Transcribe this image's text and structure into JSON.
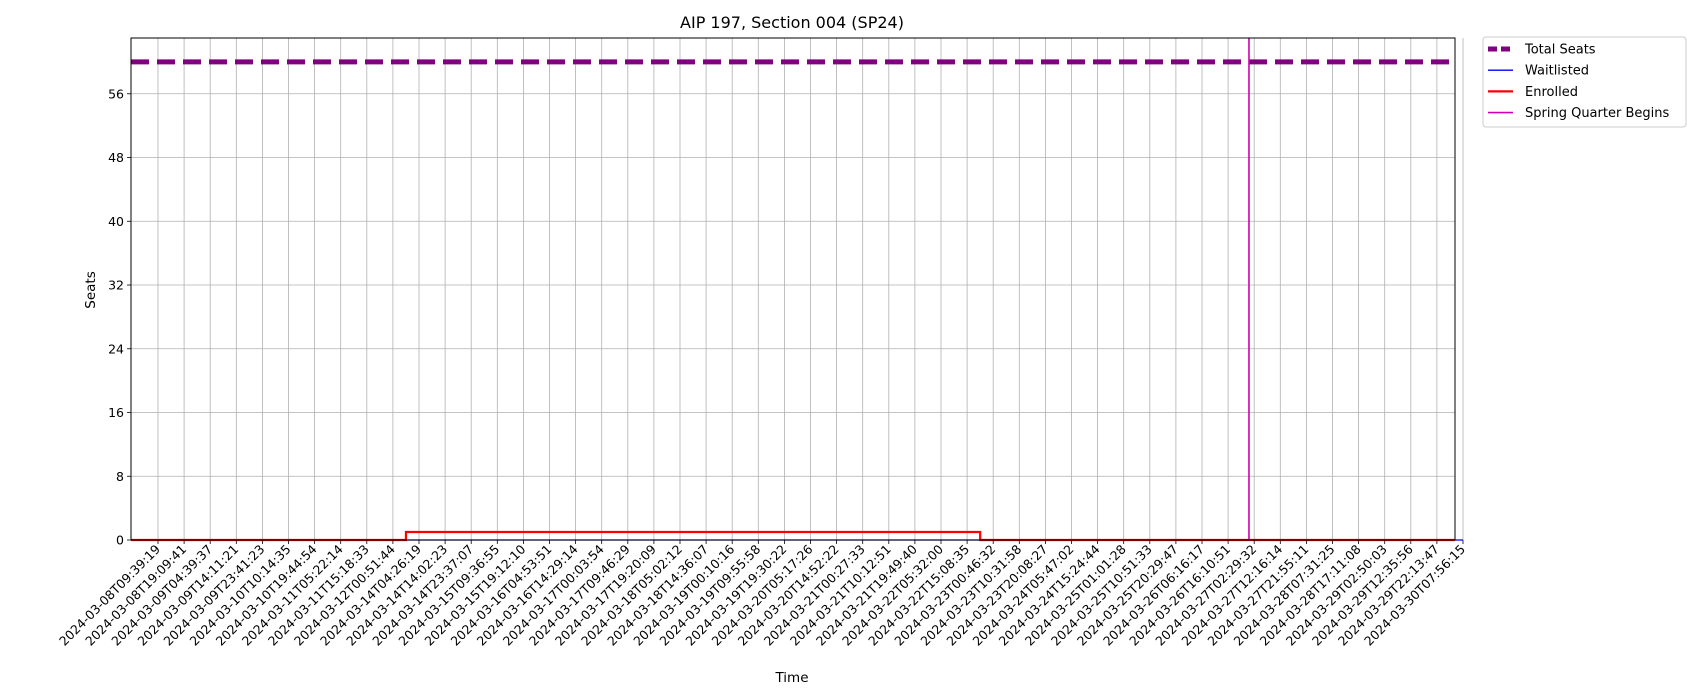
{
  "chart_data": {
    "type": "line",
    "title": "AIP 197, Section 004 (SP24)",
    "xlabel": "Time",
    "ylabel": "Seats",
    "ylim": [
      0,
      63
    ],
    "yticks": [
      0,
      8,
      16,
      24,
      32,
      40,
      48,
      56
    ],
    "grid": true,
    "legend_position": "outside-top-right",
    "x": [
      "2024-03-08T09:39:19",
      "2024-03-08T19:09:41",
      "2024-03-09T04:39:37",
      "2024-03-09T14:11:21",
      "2024-03-09T23:41:23",
      "2024-03-10T10:14:35",
      "2024-03-10T19:44:54",
      "2024-03-11T05:22:14",
      "2024-03-11T15:18:33",
      "2024-03-12T00:51:44",
      "2024-03-14T04:26:19",
      "2024-03-14T14:02:23",
      "2024-03-14T23:37:07",
      "2024-03-15T09:36:55",
      "2024-03-15T19:12:10",
      "2024-03-16T04:53:51",
      "2024-03-16T14:29:14",
      "2024-03-17T00:03:54",
      "2024-03-17T09:46:29",
      "2024-03-17T19:20:09",
      "2024-03-18T05:02:12",
      "2024-03-18T14:36:07",
      "2024-03-19T00:10:16",
      "2024-03-19T09:55:58",
      "2024-03-19T19:30:22",
      "2024-03-20T05:17:26",
      "2024-03-20T14:52:22",
      "2024-03-21T00:27:33",
      "2024-03-21T10:12:51",
      "2024-03-21T19:49:40",
      "2024-03-22T05:32:00",
      "2024-03-22T15:08:35",
      "2024-03-23T00:46:32",
      "2024-03-23T10:31:58",
      "2024-03-23T20:08:27",
      "2024-03-24T05:47:02",
      "2024-03-24T15:24:44",
      "2024-03-25T01:01:28",
      "2024-03-25T10:51:33",
      "2024-03-25T20:29:47",
      "2024-03-26T06:16:17",
      "2024-03-26T16:10:51",
      "2024-03-27T02:29:32",
      "2024-03-27T12:16:14",
      "2024-03-27T21:55:11",
      "2024-03-28T07:31:25",
      "2024-03-28T17:11:08",
      "2024-03-29T02:50:03",
      "2024-03-29T12:35:56",
      "2024-03-29T22:13:47",
      "2024-03-30T07:56:15"
    ],
    "series": [
      {
        "name": "Total Seats",
        "color": "#800080",
        "style": "dashed",
        "value": 60
      },
      {
        "name": "Waitlisted",
        "color": "#0000ff",
        "style": "solid",
        "values": [
          0,
          0,
          0,
          0,
          0,
          0,
          0,
          0,
          0,
          0,
          0,
          0,
          0,
          0,
          0,
          0,
          0,
          0,
          0,
          0,
          0,
          0,
          0,
          0,
          0,
          0,
          0,
          0,
          0,
          0,
          0,
          0,
          0,
          0,
          0,
          0,
          0,
          0,
          0,
          0,
          0,
          0,
          0,
          0,
          0,
          0,
          0,
          0,
          0,
          0,
          0
        ]
      },
      {
        "name": "Enrolled",
        "color": "#ff0000",
        "style": "solid",
        "step": true,
        "values": [
          0,
          0,
          0,
          0,
          0,
          0,
          0,
          0,
          0,
          0,
          1,
          1,
          1,
          1,
          1,
          1,
          1,
          1,
          1,
          1,
          1,
          1,
          1,
          1,
          1,
          1,
          1,
          1,
          1,
          1,
          1,
          1,
          0,
          0,
          0,
          0,
          0,
          0,
          0,
          0,
          0,
          0,
          0,
          0,
          0,
          0,
          0,
          0,
          0,
          0,
          0
        ]
      },
      {
        "name": "Spring Quarter Begins",
        "color": "#d000b0",
        "style": "vline",
        "x_index": 41.8
      }
    ]
  }
}
